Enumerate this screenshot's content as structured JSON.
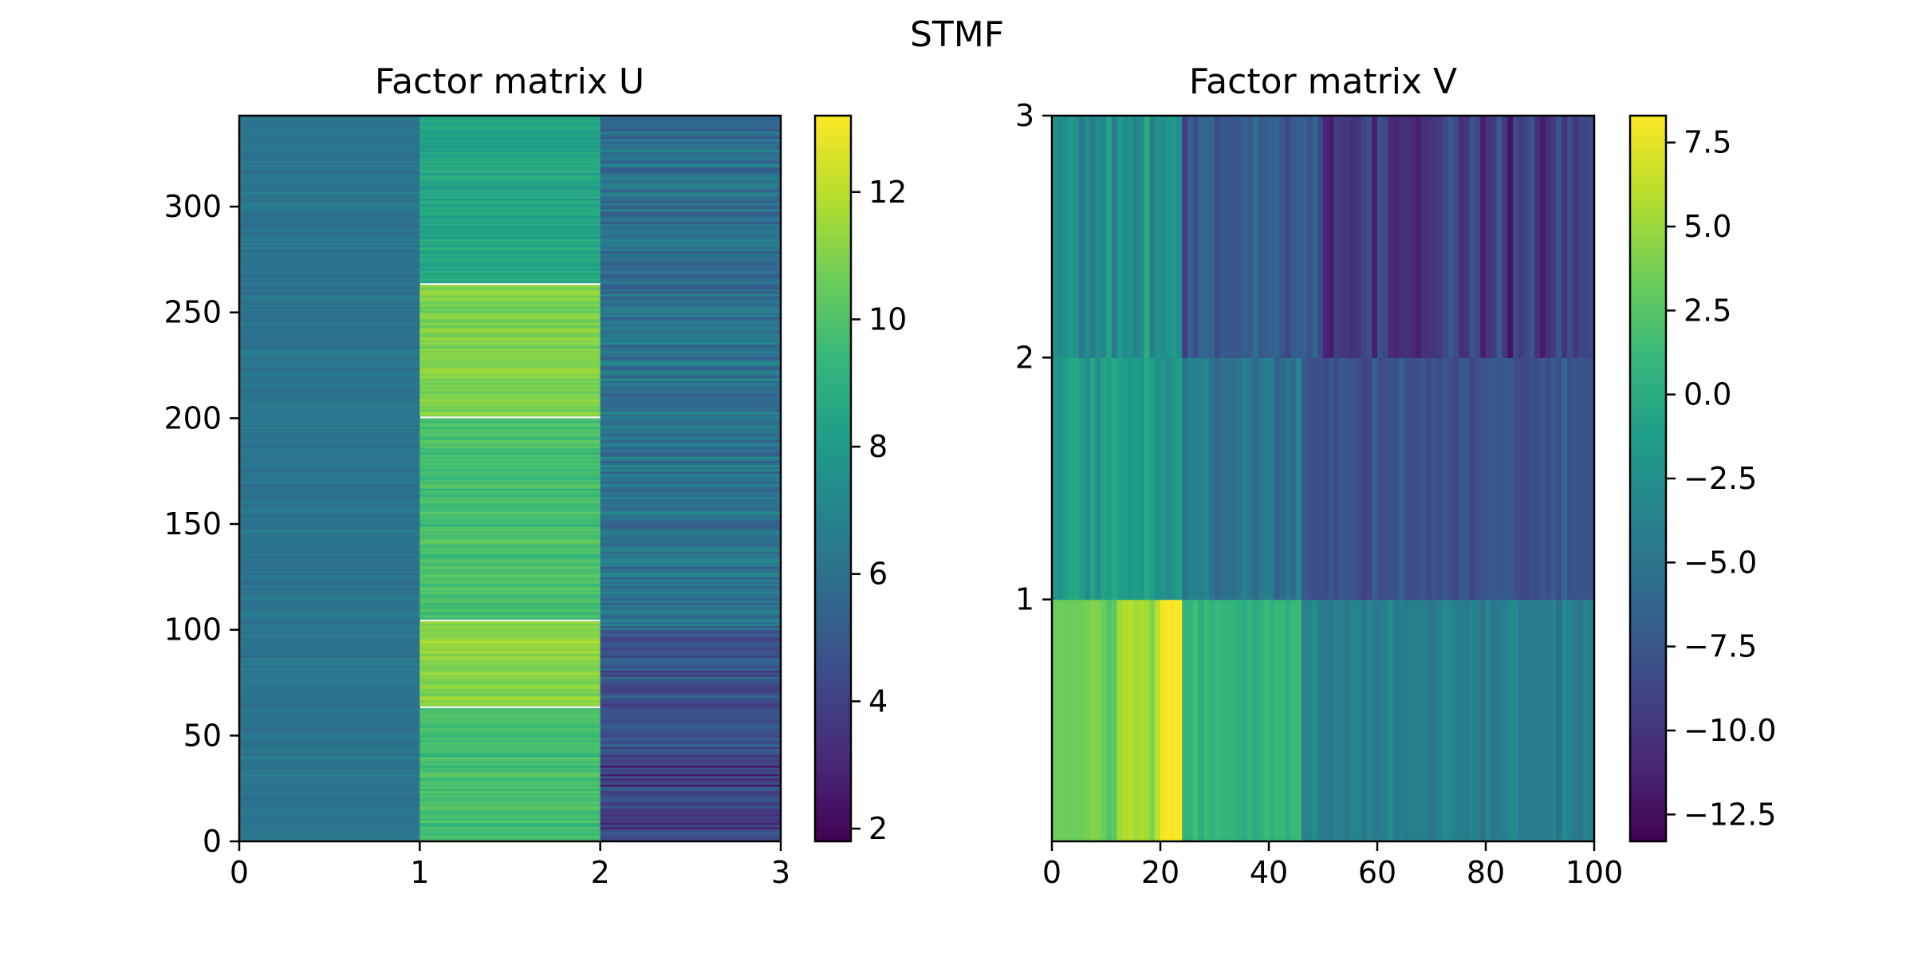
{
  "figure": {
    "title": "STMF"
  },
  "colors": {
    "viridis": [
      "#440154",
      "#482878",
      "#3e4a89",
      "#31688e",
      "#26828e",
      "#1f9e89",
      "#35b779",
      "#6ece58",
      "#b5de2b",
      "#fde725"
    ]
  },
  "chart_data": [
    {
      "type": "heatmap",
      "title": "Factor matrix U",
      "xlabel": "",
      "ylabel": "",
      "xlim": [
        0,
        3
      ],
      "ylim": [
        0,
        343
      ],
      "x_ticks": [
        "0",
        "1",
        "2",
        "3"
      ],
      "y_ticks": [
        "0",
        "50",
        "100",
        "150",
        "200",
        "250",
        "300"
      ],
      "y_tick_values": [
        0,
        50,
        100,
        150,
        200,
        250,
        300
      ],
      "n_rows": 343,
      "columns": [
        {
          "index": 0,
          "row_ranges": [
            [
              0,
              343
            ]
          ],
          "typical": 6.2,
          "spread": 0.6
        },
        {
          "index": 1,
          "row_ranges": [
            [
              0,
              63
            ],
            [
              64,
              104
            ],
            [
              105,
              200
            ],
            [
              201,
              263
            ],
            [
              264,
              343
            ]
          ],
          "range_typical": [
            9.8,
            11.2,
            9.8,
            11.0,
            8.5
          ],
          "spread": 0.9
        },
        {
          "index": 2,
          "row_ranges": [
            [
              0,
              40
            ],
            [
              40,
              100
            ],
            [
              100,
              343
            ]
          ],
          "range_typical": [
            4.0,
            4.6,
            6.0
          ],
          "spread": 1.8
        }
      ],
      "colorbar": {
        "min": 1.8,
        "max": 13.2,
        "ticks": [
          "2",
          "4",
          "6",
          "8",
          "10",
          "12"
        ],
        "tick_values": [
          2,
          4,
          6,
          8,
          10,
          12
        ]
      }
    },
    {
      "type": "heatmap",
      "title": "Factor matrix V",
      "xlabel": "",
      "ylabel": "",
      "xlim": [
        0,
        100
      ],
      "ylim": [
        0,
        3
      ],
      "x_ticks": [
        "0",
        "20",
        "40",
        "60",
        "80",
        "100"
      ],
      "x_tick_values": [
        0,
        20,
        40,
        60,
        80,
        100
      ],
      "y_ticks": [
        "1",
        "2",
        "3"
      ],
      "y_tick_values": [
        1,
        2,
        3
      ],
      "n_columns": 100,
      "rows": [
        {
          "index": 0,
          "segments": [
            {
              "from": 0,
              "to": 12,
              "typical": 3.5
            },
            {
              "from": 12,
              "to": 20,
              "typical": 5.0
            },
            {
              "from": 20,
              "to": 24,
              "typical": 8.2
            },
            {
              "from": 24,
              "to": 46,
              "typical": 1.0
            },
            {
              "from": 46,
              "to": 100,
              "typical": -4.0
            }
          ],
          "spread": 1.8
        },
        {
          "index": 1,
          "segments": [
            {
              "from": 0,
              "to": 24,
              "typical": -1.5
            },
            {
              "from": 24,
              "to": 46,
              "typical": -5.0
            },
            {
              "from": 46,
              "to": 100,
              "typical": -8.0
            }
          ],
          "spread": 2.2
        },
        {
          "index": 2,
          "segments": [
            {
              "from": 0,
              "to": 24,
              "typical": -2.5
            },
            {
              "from": 24,
              "to": 50,
              "typical": -7.0
            },
            {
              "from": 50,
              "to": 100,
              "typical": -9.5
            }
          ],
          "spread": 3.2
        }
      ],
      "colorbar": {
        "min": -13.3,
        "max": 8.3,
        "ticks": [
          "7.5",
          "5.0",
          "2.5",
          "0.0",
          "−2.5",
          "−5.0",
          "−7.5",
          "−10.0",
          "−12.5"
        ],
        "tick_values": [
          7.5,
          5.0,
          2.5,
          0.0,
          -2.5,
          -5.0,
          -7.5,
          -10.0,
          -12.5
        ]
      }
    }
  ]
}
